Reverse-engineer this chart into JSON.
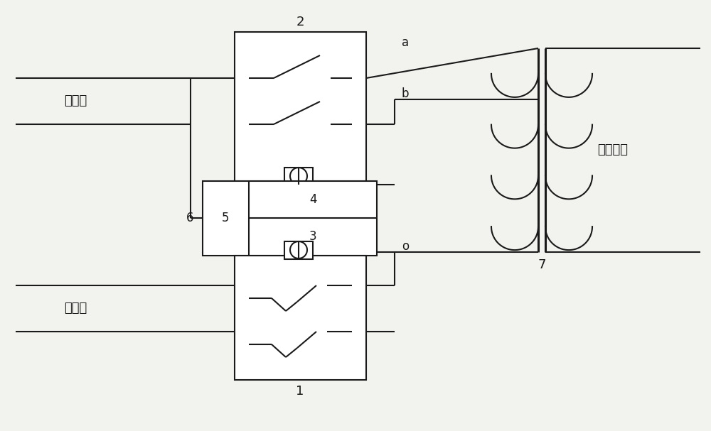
{
  "bg_color": "#f2f2ee",
  "line_color": "#1a1a1a",
  "label_2": "2",
  "label_1": "1",
  "label_3": "3",
  "label_4": "4",
  "label_5": "5",
  "label_6": "6",
  "label_7": "7",
  "label_a": "a",
  "label_b": "b",
  "label_o": "o",
  "label_dianyuan2": "电源二",
  "label_dianyuan1": "电源一",
  "label_output": "供电输出",
  "figw": 10.0,
  "figh": 6.07
}
